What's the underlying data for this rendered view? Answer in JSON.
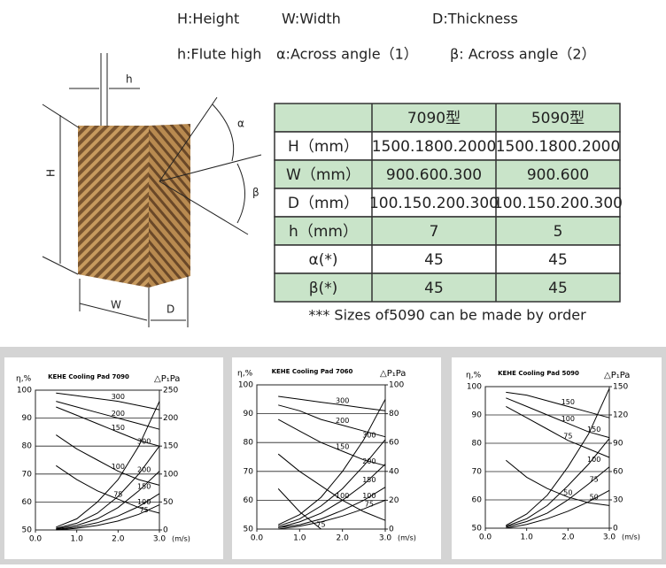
{
  "header": {
    "line1": [
      "H:Height",
      "W:Width",
      "D:Thickness"
    ],
    "line2": [
      "h:Flute high",
      "α:Across angle（1）",
      "β: Across angle（2）"
    ]
  },
  "diagram": {
    "labels": [
      "h",
      "H",
      "α",
      "β",
      "W",
      "D"
    ]
  },
  "table": {
    "header": [
      "7090型",
      "5090型"
    ],
    "rows": [
      [
        "H（mm）",
        "1500.1800.2000",
        "1500.1800.2000"
      ],
      [
        "W（mm）",
        "900.600.300",
        "900.600"
      ],
      [
        "D（mm）",
        "100.150.200.300",
        "100.150.200.300"
      ],
      [
        "h（mm）",
        7,
        5
      ],
      [
        "α(*)",
        45,
        45
      ],
      [
        "β(*)",
        45,
        45
      ]
    ]
  },
  "note": "*** Sizes of5090 can be made by order",
  "chart_data": [
    {
      "type": "line",
      "title": "KEHE Cooling Pad 7090",
      "ylabel": "η,%",
      "y2label": "△P₁Pa",
      "xlabel": "(m/s)",
      "x": [
        0.5,
        1.0,
        1.5,
        2.0,
        2.5,
        3.0
      ],
      "xlim": [
        0,
        3
      ],
      "xticks": [
        {
          "value": 0,
          "label": "0.0"
        },
        {
          "value": 1,
          "label": "1.0"
        },
        {
          "value": 2,
          "label": "2.0"
        },
        {
          "value": 3,
          "label": "3.0"
        }
      ],
      "ylim": [
        50,
        100
      ],
      "yticks": [
        50,
        60,
        70,
        80,
        90,
        100
      ],
      "y2lim": [
        0,
        250
      ],
      "y2ticks": [
        0,
        50,
        100,
        150,
        200,
        250
      ],
      "grid": true,
      "series": [
        {
          "name": "300",
          "color": "#000",
          "values": [
            99,
            98,
            97,
            96,
            94.5,
            93
          ]
        },
        {
          "name": "200",
          "color": "#000",
          "values": [
            96,
            94,
            92,
            90,
            88,
            86
          ]
        },
        {
          "name": "150",
          "color": "#000",
          "values": [
            94,
            91,
            88,
            85,
            82,
            80
          ]
        },
        {
          "name": "100",
          "color": "#000",
          "values": [
            84,
            79,
            75,
            71,
            68,
            66
          ]
        },
        {
          "name": "75",
          "color": "#000",
          "values": [
            73,
            68,
            64,
            61,
            58,
            56
          ]
        },
        {
          "name": "300",
          "color": "#000",
          "axis": "y2",
          "values": [
            5,
            20,
            50,
            90,
            150,
            230
          ]
        },
        {
          "name": "200",
          "color": "#000",
          "axis": "y2",
          "values": [
            3,
            12,
            30,
            60,
            100,
            150
          ]
        },
        {
          "name": "150",
          "color": "#000",
          "axis": "y2",
          "values": [
            2,
            8,
            20,
            40,
            70,
            105
          ]
        },
        {
          "name": "100",
          "color": "#000",
          "axis": "y2",
          "values": [
            1,
            5,
            13,
            25,
            42,
            65
          ]
        },
        {
          "name": "75",
          "color": "#000",
          "axis": "y2",
          "values": [
            0,
            3,
            8,
            16,
            28,
            45
          ]
        }
      ]
    },
    {
      "type": "line",
      "title": "KEHE Cooling Pad 7060",
      "ylabel": "η,%",
      "y2label": "△P₁Pa",
      "xlabel": "(m/s)",
      "x": [
        0.5,
        1.0,
        1.5,
        2.0,
        2.5,
        3.0
      ],
      "xlim": [
        0,
        3
      ],
      "xticks": [
        {
          "value": 0,
          "label": "0.0"
        },
        {
          "value": 1,
          "label": "1.0"
        },
        {
          "value": 2,
          "label": "2.0"
        },
        {
          "value": 3,
          "label": "3.0"
        }
      ],
      "ylim": [
        50,
        100
      ],
      "yticks": [
        50,
        60,
        70,
        80,
        90,
        100
      ],
      "y2lim": [
        0,
        100
      ],
      "y2ticks": [
        0,
        20,
        40,
        60,
        80,
        100
      ],
      "grid": true,
      "series": [
        {
          "name": "300",
          "color": "#000",
          "values": [
            96,
            95,
            94,
            93,
            92,
            91
          ]
        },
        {
          "name": "200",
          "color": "#000",
          "values": [
            93,
            91,
            88,
            86,
            84,
            82
          ]
        },
        {
          "name": "150",
          "color": "#000",
          "values": [
            88,
            84,
            80,
            77,
            74,
            72
          ]
        },
        {
          "name": "100",
          "color": "#000",
          "values": [
            76,
            70,
            65,
            60,
            56,
            53
          ]
        },
        {
          "name": "75",
          "color": "#000",
          "values": [
            64,
            56,
            50,
            null,
            null,
            null
          ]
        },
        {
          "name": "300",
          "color": "#000",
          "axis": "y2",
          "values": [
            3,
            10,
            22,
            40,
            62,
            90
          ]
        },
        {
          "name": "200",
          "color": "#000",
          "axis": "y2",
          "values": [
            2,
            7,
            16,
            28,
            44,
            62
          ]
        },
        {
          "name": "150",
          "color": "#000",
          "axis": "y2",
          "values": [
            1,
            5,
            11,
            20,
            31,
            45
          ]
        },
        {
          "name": "100",
          "color": "#000",
          "axis": "y2",
          "values": [
            1,
            3,
            7,
            13,
            20,
            29
          ]
        },
        {
          "name": "75",
          "color": "#000",
          "axis": "y2",
          "values": [
            0,
            2,
            5,
            9,
            14,
            20
          ]
        }
      ]
    },
    {
      "type": "line",
      "title": "KEHE Cooling Pad 5090",
      "ylabel": "η,%",
      "y2label": "△P₁Pa",
      "xlabel": "(m/s)",
      "x": [
        0.5,
        1.0,
        1.5,
        2.0,
        2.5,
        3.0
      ],
      "xlim": [
        0,
        3
      ],
      "xticks": [
        {
          "value": 0,
          "label": "0.0"
        },
        {
          "value": 1,
          "label": "1.0"
        },
        {
          "value": 2,
          "label": "2.0"
        },
        {
          "value": 3,
          "label": "3.0"
        }
      ],
      "ylim": [
        50,
        100
      ],
      "yticks": [
        50,
        60,
        70,
        80,
        90,
        100
      ],
      "y2lim": [
        0,
        150
      ],
      "y2ticks": [
        0,
        30,
        60,
        90,
        120,
        150
      ],
      "grid": true,
      "series": [
        {
          "name": "150",
          "color": "#000",
          "values": [
            98,
            97,
            95,
            93,
            91,
            89
          ]
        },
        {
          "name": "100",
          "color": "#000",
          "values": [
            96,
            93,
            90,
            87,
            84,
            82
          ]
        },
        {
          "name": "75",
          "color": "#000",
          "values": [
            93,
            89,
            85,
            81,
            78,
            75
          ]
        },
        {
          "name": "50",
          "color": "#000",
          "values": [
            74,
            68,
            64,
            61,
            59,
            58
          ]
        },
        {
          "name": "150",
          "color": "#000",
          "axis": "y2",
          "values": [
            3,
            15,
            35,
            65,
            100,
            148
          ]
        },
        {
          "name": "100",
          "color": "#000",
          "axis": "y2",
          "values": [
            2,
            10,
            24,
            45,
            68,
            95
          ]
        },
        {
          "name": "75",
          "color": "#000",
          "axis": "y2",
          "values": [
            1,
            7,
            16,
            30,
            47,
            65
          ]
        },
        {
          "name": "50",
          "color": "#000",
          "axis": "y2",
          "values": [
            0,
            4,
            10,
            18,
            28,
            40
          ]
        }
      ]
    }
  ]
}
